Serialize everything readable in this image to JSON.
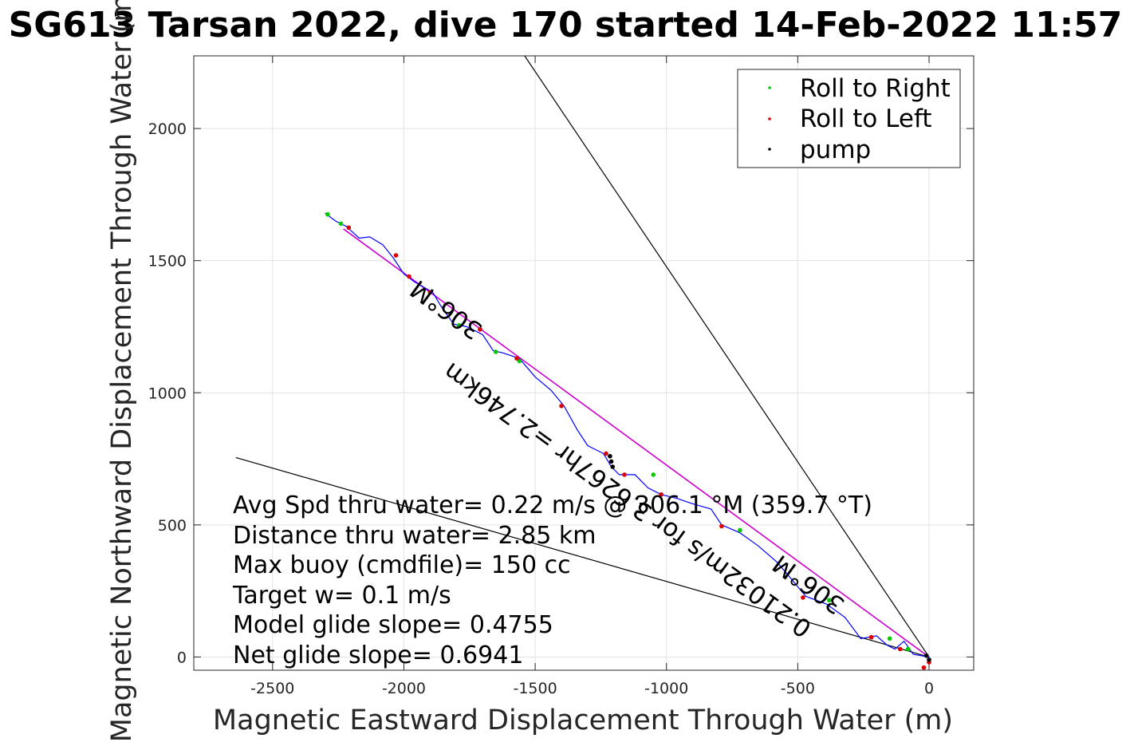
{
  "chart_data": {
    "type": "line",
    "title": "SG613 Tarsan 2022, dive 170 started 14-Feb-2022 11:57",
    "xlabel": "Magnetic Eastward Displacement Through Water (m)",
    "ylabel": "Magnetic Northward Displacement Through Water (m)",
    "xlim": [
      -2800,
      170
    ],
    "ylim": [
      -50,
      2275
    ],
    "xticks": [
      -2500,
      -2000,
      -1500,
      -1000,
      -500,
      0
    ],
    "yticks": [
      0,
      500,
      1000,
      1500,
      2000
    ],
    "grid": true,
    "legend_position": "top-right",
    "legend": [
      {
        "label": "Roll to Right",
        "color": "#00cc00"
      },
      {
        "label": "Roll to Left",
        "color": "#dd0000"
      },
      {
        "label": "pump",
        "color": "#000000"
      }
    ],
    "track": {
      "color": "#0000ff",
      "points": [
        [
          0,
          0
        ],
        [
          -60,
          10
        ],
        [
          -95,
          60
        ],
        [
          -130,
          30
        ],
        [
          -160,
          45
        ],
        [
          -200,
          80
        ],
        [
          -260,
          70
        ],
        [
          -320,
          150
        ],
        [
          -390,
          200
        ],
        [
          -470,
          230
        ],
        [
          -520,
          290
        ],
        [
          -580,
          360
        ],
        [
          -650,
          420
        ],
        [
          -720,
          470
        ],
        [
          -790,
          500
        ],
        [
          -830,
          560
        ],
        [
          -900,
          580
        ],
        [
          -960,
          600
        ],
        [
          -1020,
          615
        ],
        [
          -1070,
          640
        ],
        [
          -1120,
          690
        ],
        [
          -1180,
          690
        ],
        [
          -1210,
          720
        ],
        [
          -1240,
          770
        ],
        [
          -1300,
          800
        ],
        [
          -1340,
          860
        ],
        [
          -1390,
          950
        ],
        [
          -1440,
          1010
        ],
        [
          -1500,
          1060
        ],
        [
          -1560,
          1130
        ],
        [
          -1620,
          1150
        ],
        [
          -1660,
          1160
        ],
        [
          -1700,
          1220
        ],
        [
          -1760,
          1250
        ],
        [
          -1810,
          1260
        ],
        [
          -1860,
          1330
        ],
        [
          -1890,
          1380
        ],
        [
          -1960,
          1420
        ],
        [
          -2000,
          1450
        ],
        [
          -2040,
          1510
        ],
        [
          -2080,
          1560
        ],
        [
          -2130,
          1590
        ],
        [
          -2170,
          1585
        ],
        [
          -2220,
          1630
        ],
        [
          -2260,
          1650
        ],
        [
          -2300,
          1680
        ]
      ]
    },
    "roll_right_points": [
      [
        -2290,
        1675
      ],
      [
        -2240,
        1640
      ],
      [
        -1790,
        1255
      ],
      [
        -1650,
        1155
      ],
      [
        -1560,
        1120
      ],
      [
        -1050,
        690
      ],
      [
        -720,
        480
      ],
      [
        -380,
        215
      ],
      [
        -150,
        70
      ],
      [
        -80,
        30
      ]
    ],
    "roll_left_points": [
      [
        -2210,
        1625
      ],
      [
        -2030,
        1520
      ],
      [
        -1980,
        1440
      ],
      [
        -1900,
        1380
      ],
      [
        -1710,
        1240
      ],
      [
        -1570,
        1130
      ],
      [
        -1400,
        950
      ],
      [
        -1230,
        770
      ],
      [
        -1160,
        690
      ],
      [
        -1020,
        615
      ],
      [
        -790,
        495
      ],
      [
        -480,
        225
      ],
      [
        -220,
        75
      ],
      [
        -110,
        30
      ],
      [
        -20,
        -40
      ],
      [
        0,
        -20
      ]
    ],
    "pump_points": [
      [
        -1215,
        760
      ],
      [
        -1210,
        740
      ],
      [
        -1205,
        720
      ],
      [
        0,
        -10
      ],
      [
        -10,
        5
      ]
    ],
    "net_course_line": {
      "from": [
        0,
        0
      ],
      "to": [
        -2230,
        1620
      ],
      "color": "#cc00cc"
    },
    "bound_lines": [
      {
        "from": [
          0,
          0
        ],
        "to": [
          -1540,
          2275
        ],
        "color": "#000000"
      },
      {
        "from": [
          0,
          0
        ],
        "to": [
          -2640,
          755
        ],
        "color": "#000000"
      }
    ],
    "rotated_labels": [
      {
        "text": "306°M",
        "at": [
          -1820,
          1340
        ],
        "angle_deg": 36
      },
      {
        "text": "0.21032m/s for 3.6267hr =2.746km",
        "at": [
          -1130,
          620
        ],
        "angle_deg": 36
      },
      {
        "text": "306°M",
        "at": [
          -440,
          300
        ],
        "angle_deg": 36
      }
    ],
    "stats": [
      "Avg Spd thru water=  0.22 m/s @ 306.1 °M (359.7 °T)",
      "Distance thru water=  2.85 km",
      "Max buoy (cmdfile)= 150 cc",
      "Target w= 0.1 m/s",
      "Model glide slope= 0.4755",
      "Net glide slope= 0.6941"
    ]
  }
}
